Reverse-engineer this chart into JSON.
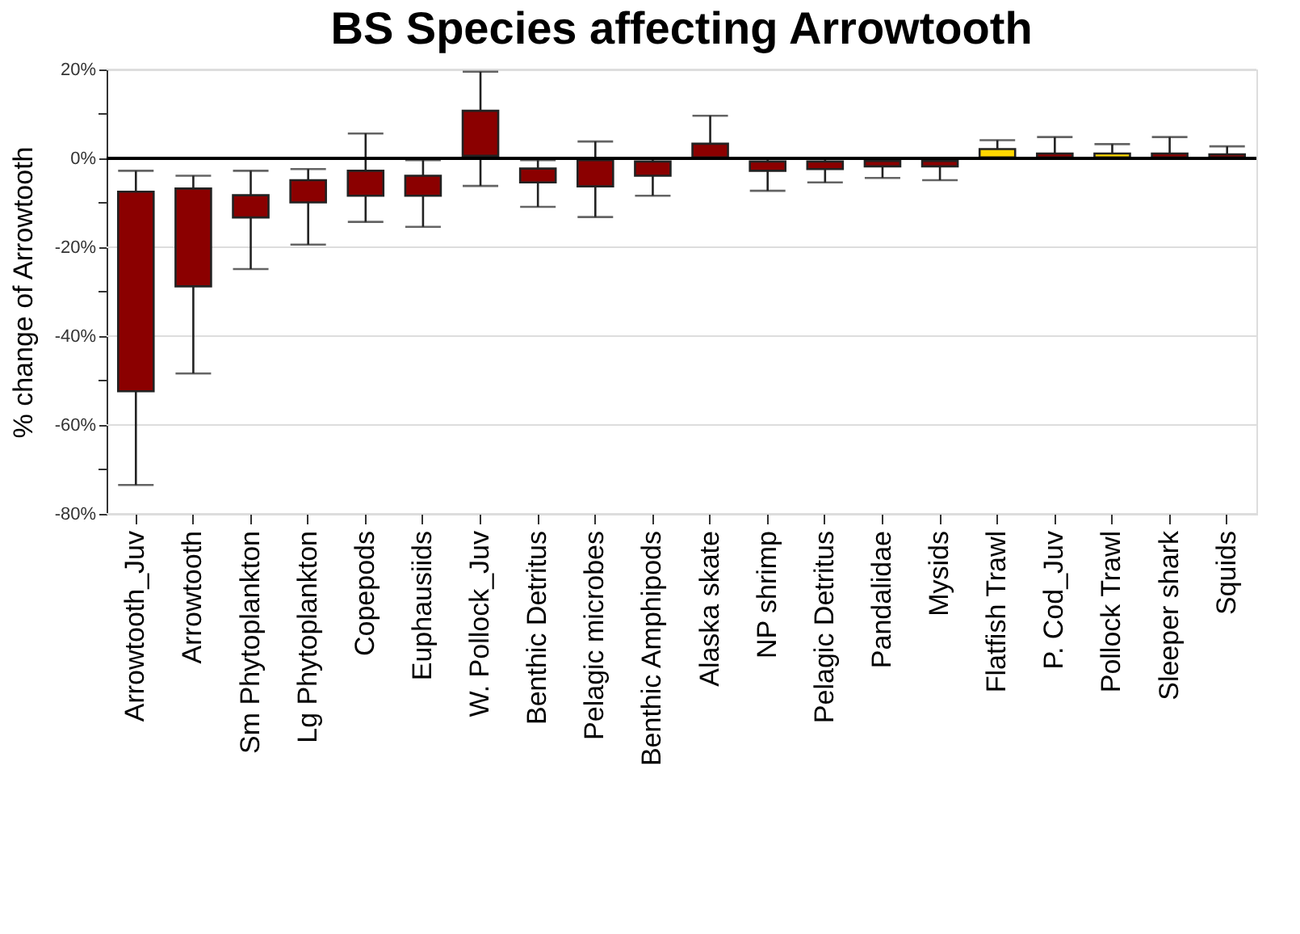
{
  "chart_data": {
    "type": "bar",
    "title": "BS Species affecting Arrowtooth",
    "ylabel": "% change of Arrowtooth",
    "categories": [
      "Arrowtooth_Juv",
      "Arrowtooth",
      "Sm Phytoplankton",
      "Lg Phytoplankton",
      "Copepods",
      "Euphausiids",
      "W. Pollock_Juv",
      "Benthic Detritus",
      "Pelagic microbes",
      "Benthic Amphipods",
      "Alaska skate",
      "NP shrimp",
      "Pelagic Detritus",
      "Pandalidae",
      "Mysids",
      "Flatfish Trawl",
      "P. Cod_Juv",
      "Pollock Trawl",
      "Sleeper shark",
      "Squids"
    ],
    "base": [
      -52.4,
      -28.8,
      -13.3,
      -9.9,
      -8.4,
      -8.4,
      0.6,
      -5.4,
      -6.3,
      -3.9,
      0.2,
      -2.8,
      -2.4,
      -1.8,
      -1.8,
      0.2,
      0.2,
      0.2,
      0.2,
      0.2
    ],
    "values": [
      44.9,
      22.0,
      5.0,
      5.0,
      5.6,
      4.5,
      10.1,
      3.1,
      5.9,
      3.2,
      3.1,
      2.1,
      1.7,
      1.2,
      1.2,
      1.9,
      0.9,
      0.9,
      0.9,
      0.7
    ],
    "errors": [
      [
        -73.5,
        -2.8
      ],
      [
        -48.4,
        -3.9
      ],
      [
        -24.9,
        -2.8
      ],
      [
        -19.4,
        -2.4
      ],
      [
        -14.3,
        5.6
      ],
      [
        -15.4,
        -0.4
      ],
      [
        -6.2,
        19.5
      ],
      [
        -10.9,
        -0.4
      ],
      [
        -13.2,
        3.8
      ],
      [
        -8.4,
        0
      ],
      [
        0.2,
        9.6
      ],
      [
        -7.3,
        0
      ],
      [
        -5.4,
        0
      ],
      [
        -4.4,
        0
      ],
      [
        -4.9,
        0
      ],
      [
        0.2,
        4.1
      ],
      [
        0.2,
        4.8
      ],
      [
        0.2,
        3.2
      ],
      [
        0.2,
        4.8
      ],
      [
        0.2,
        2.7
      ]
    ],
    "colors": [
      "#8b0000",
      "#8b0000",
      "#8b0000",
      "#8b0000",
      "#8b0000",
      "#8b0000",
      "#8b0000",
      "#8b0000",
      "#8b0000",
      "#8b0000",
      "#8b0000",
      "#8b0000",
      "#8b0000",
      "#8b0000",
      "#8b0000",
      "#ffd700",
      "#8b0000",
      "#ffd700",
      "#8b0000",
      "#8b0000"
    ],
    "ylim": [
      -80,
      20
    ],
    "yticks": [
      {
        "value": -80,
        "label": "-80%"
      },
      {
        "value": -70,
        "label": null
      },
      {
        "value": -60,
        "label": "-60%"
      },
      {
        "value": -50,
        "label": null
      },
      {
        "value": -40,
        "label": "-40%"
      },
      {
        "value": -30,
        "label": null
      },
      {
        "value": -20,
        "label": "-20%"
      },
      {
        "value": -10,
        "label": null
      },
      {
        "value": 0,
        "label": "0%"
      },
      {
        "value": 10,
        "label": null
      },
      {
        "value": 20,
        "label": "20%"
      }
    ],
    "ref_lines": [
      {
        "axis": "y",
        "value": 0,
        "color": "#000000"
      }
    ],
    "grid": "y"
  }
}
